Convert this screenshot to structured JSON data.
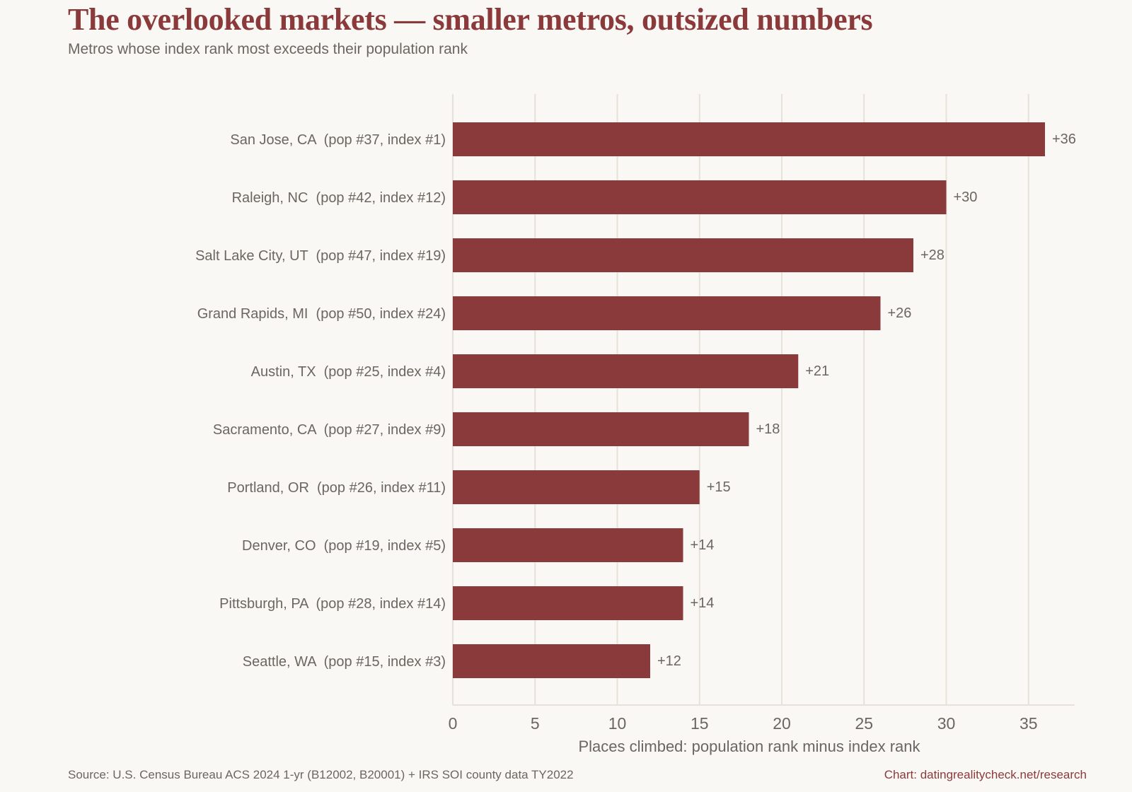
{
  "title": "The overlooked markets — smaller metros, outsized numbers",
  "subtitle": "Metros whose index rank most exceeds their population rank",
  "footer": {
    "source": "Source: U.S. Census Bureau ACS 2024 1-yr (B12002, B20001) + IRS SOI county data TY2022",
    "credit": "Chart: datingrealitycheck.net/research"
  },
  "colors": {
    "bar": "#8b3a3c",
    "grid": "#e6e1d9",
    "text": "#6b6660",
    "background": "#faf8f4"
  },
  "chart_data": {
    "type": "bar",
    "orientation": "horizontal",
    "categories": [
      "San Jose, CA  (pop #37, index #1)",
      "Raleigh, NC  (pop #42, index #12)",
      "Salt Lake City, UT  (pop #47, index #19)",
      "Grand Rapids, MI  (pop #50, index #24)",
      "Austin, TX  (pop #25, index #4)",
      "Sacramento, CA  (pop #27, index #9)",
      "Portland, OR  (pop #26, index #11)",
      "Denver, CO  (pop #19, index #5)",
      "Pittsburgh, PA  (pop #28, index #14)",
      "Seattle, WA  (pop #15, index #3)"
    ],
    "values": [
      36,
      30,
      28,
      26,
      21,
      18,
      15,
      14,
      14,
      12
    ],
    "value_labels": [
      "+36",
      "+30",
      "+28",
      "+26",
      "+21",
      "+18",
      "+15",
      "+14",
      "+14",
      "+12"
    ],
    "xlabel": "Places climbed: population rank minus index rank",
    "ylabel": "",
    "xlim": [
      0,
      37.8
    ],
    "xticks": [
      0,
      5,
      10,
      15,
      20,
      25,
      30,
      35
    ],
    "grid": "vertical"
  }
}
